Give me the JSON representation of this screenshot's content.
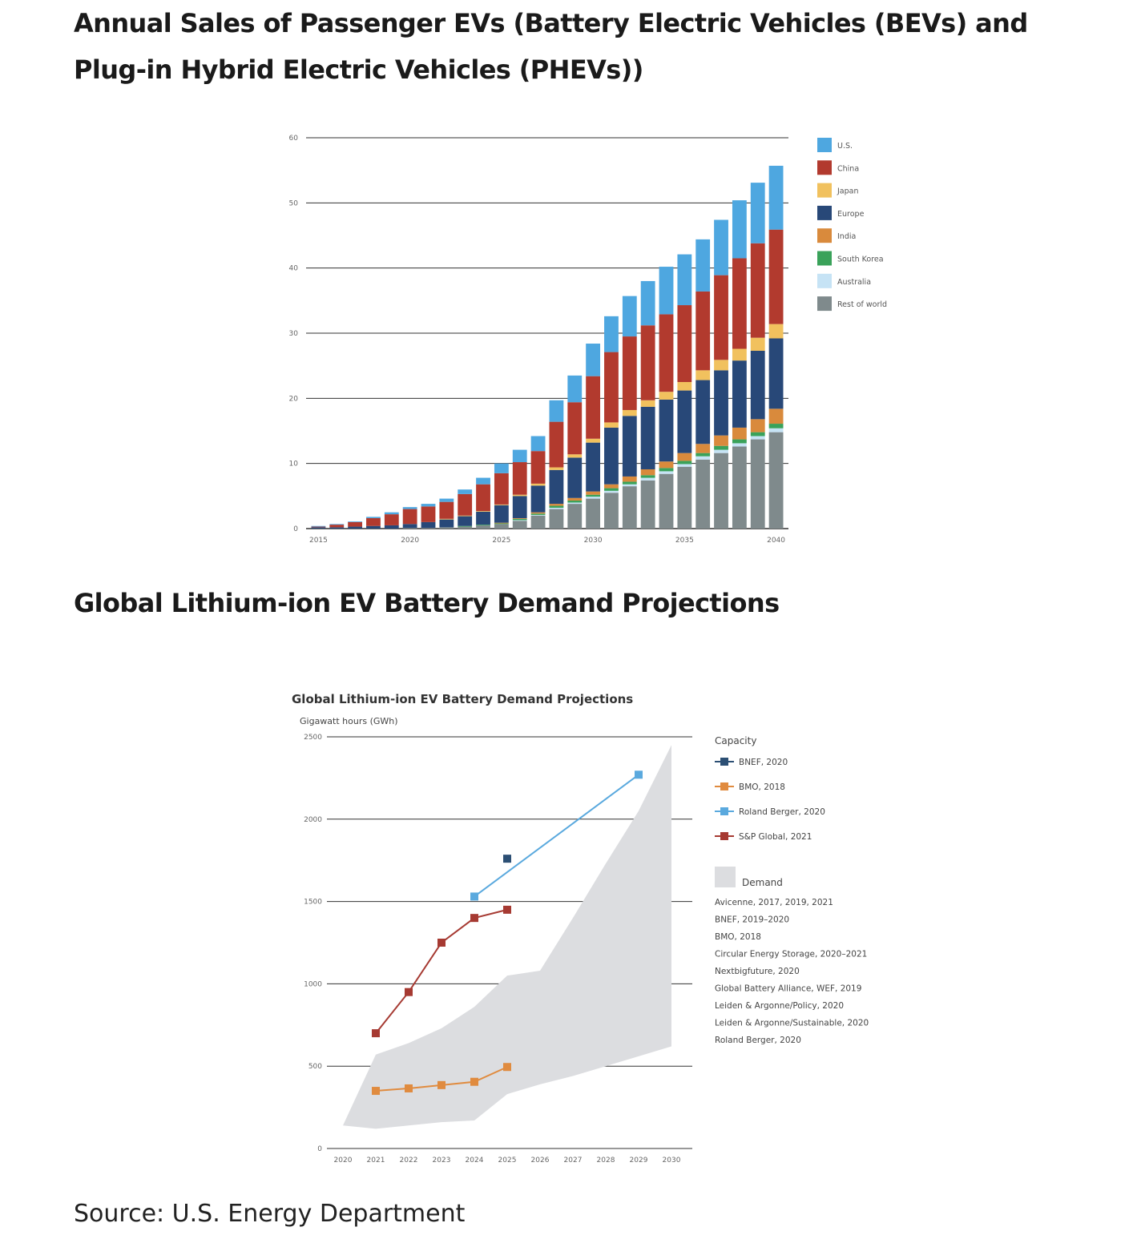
{
  "page": {
    "heading_1": "Annual Sales of Passenger EVs (Battery Electric Vehicles (BEVs) and Plug-in Hybrid Electric Vehicles (PHEVs))",
    "heading_2": "Global Lithium-ion EV Battery Demand Projections",
    "source": "Source: U.S. Energy Department"
  },
  "chart_data": [
    {
      "type": "bar",
      "stacked": true,
      "title": "",
      "xlabel": "",
      "ylabel": "",
      "ylim": [
        0,
        60
      ],
      "yticks": [
        0,
        10,
        20,
        30,
        40,
        50,
        60
      ],
      "xtick_labels": [
        "2015",
        "2020",
        "2025",
        "2030",
        "2035",
        "2040"
      ],
      "grid": true,
      "legend_position": "right",
      "categories": [
        "2015",
        "2016",
        "2017",
        "2018",
        "2019",
        "2020",
        "2021",
        "2022",
        "2023",
        "2024",
        "2025",
        "2026",
        "2027",
        "2028",
        "2029",
        "2030",
        "2031",
        "2032",
        "2033",
        "2034",
        "2035",
        "2036",
        "2037",
        "2038",
        "2039",
        "2040"
      ],
      "series": [
        {
          "name": "Rest of world",
          "color": "#7f8a8c",
          "values": [
            0,
            0,
            0,
            0,
            0,
            0.1,
            0.1,
            0.2,
            0.3,
            0.5,
            0.7,
            1.2,
            2.0,
            3.0,
            3.8,
            4.6,
            5.5,
            6.5,
            7.4,
            8.4,
            9.5,
            10.6,
            11.6,
            12.6,
            13.7,
            14.8
          ]
        },
        {
          "name": "Australia",
          "color": "#c6e3f5",
          "values": [
            0,
            0,
            0,
            0,
            0,
            0,
            0,
            0,
            0,
            0,
            0,
            0.1,
            0.1,
            0.2,
            0.2,
            0.3,
            0.3,
            0.3,
            0.4,
            0.4,
            0.4,
            0.5,
            0.5,
            0.5,
            0.5,
            0.6
          ]
        },
        {
          "name": "South Korea",
          "color": "#3aa25a",
          "values": [
            0,
            0,
            0,
            0,
            0,
            0,
            0,
            0,
            0.1,
            0.1,
            0.1,
            0.2,
            0.2,
            0.3,
            0.3,
            0.3,
            0.4,
            0.4,
            0.4,
            0.5,
            0.5,
            0.5,
            0.6,
            0.6,
            0.6,
            0.7
          ]
        },
        {
          "name": "India",
          "color": "#d98a3c",
          "values": [
            0,
            0,
            0,
            0,
            0,
            0,
            0,
            0,
            0,
            0,
            0.1,
            0.1,
            0.2,
            0.3,
            0.4,
            0.5,
            0.6,
            0.8,
            0.9,
            1.0,
            1.2,
            1.4,
            1.6,
            1.8,
            2.0,
            2.3
          ]
        },
        {
          "name": "Europe",
          "color": "#284878",
          "values": [
            0.2,
            0.2,
            0.3,
            0.4,
            0.5,
            0.6,
            0.9,
            1.2,
            1.5,
            2.0,
            2.7,
            3.4,
            4.1,
            5.2,
            6.2,
            7.5,
            8.7,
            9.3,
            9.6,
            9.5,
            9.6,
            9.8,
            10.0,
            10.3,
            10.5,
            10.8
          ]
        },
        {
          "name": "Japan",
          "color": "#f1c15e",
          "values": [
            0,
            0,
            0,
            0,
            0,
            0,
            0,
            0.1,
            0.1,
            0.1,
            0.1,
            0.2,
            0.3,
            0.4,
            0.5,
            0.6,
            0.8,
            0.9,
            1.0,
            1.2,
            1.3,
            1.5,
            1.6,
            1.8,
            2.0,
            2.2
          ]
        },
        {
          "name": "China",
          "color": "#b23a2e",
          "values": [
            0.1,
            0.4,
            0.7,
            1.2,
            1.7,
            2.3,
            2.4,
            2.6,
            3.3,
            4.1,
            4.8,
            5.0,
            5.0,
            7.0,
            8.0,
            9.6,
            10.8,
            11.3,
            11.5,
            11.9,
            11.8,
            12.1,
            13.0,
            13.9,
            14.5,
            14.5
          ]
        },
        {
          "name": "U.S.",
          "color": "#4ea7e0",
          "values": [
            0.1,
            0.1,
            0.1,
            0.2,
            0.3,
            0.3,
            0.4,
            0.5,
            0.7,
            1.0,
            1.5,
            1.9,
            2.3,
            3.3,
            4.1,
            5.0,
            5.5,
            6.2,
            6.8,
            7.3,
            7.8,
            8.0,
            8.5,
            8.9,
            9.3,
            9.8
          ]
        }
      ]
    },
    {
      "type": "line",
      "title": "Global Lithium-ion EV Battery Demand Projections",
      "xlabel": "",
      "ylabel": "Gigawatt hours (GWh)",
      "ylim": [
        0,
        2500
      ],
      "yticks": [
        0,
        500,
        1000,
        1500,
        2000,
        2500
      ],
      "x": [
        "2020",
        "2021",
        "2022",
        "2023",
        "2024",
        "2025",
        "2026",
        "2027",
        "2028",
        "2029",
        "2030"
      ],
      "grid": true,
      "legend_position": "right",
      "legend_title_capacity": "Capacity",
      "legend_title_demand": "Demand",
      "series": [
        {
          "name": "BNEF, 2020",
          "color": "#2c4f74",
          "points": [
            {
              "x": 2025,
              "y": 1760
            }
          ]
        },
        {
          "name": "BMO, 2018",
          "color": "#e08b3f",
          "points": [
            {
              "x": 2021,
              "y": 350
            },
            {
              "x": 2022,
              "y": 365
            },
            {
              "x": 2023,
              "y": 385
            },
            {
              "x": 2024,
              "y": 405
            },
            {
              "x": 2025,
              "y": 495
            }
          ]
        },
        {
          "name": "Roland Berger, 2020",
          "color": "#5aa9de",
          "points": [
            {
              "x": 2024,
              "y": 1530
            },
            {
              "x": 2029,
              "y": 2270
            }
          ]
        },
        {
          "name": "S&P Global, 2021",
          "color": "#a63a32",
          "points": [
            {
              "x": 2021,
              "y": 700
            },
            {
              "x": 2022,
              "y": 950
            },
            {
              "x": 2023,
              "y": 1250
            },
            {
              "x": 2024,
              "y": 1400
            },
            {
              "x": 2025,
              "y": 1450
            }
          ]
        }
      ],
      "demand_band": {
        "name": "Demand",
        "color": "#dcdde0",
        "x": [
          2020,
          2021,
          2022,
          2023,
          2024,
          2025,
          2026,
          2027,
          2028,
          2029,
          2030
        ],
        "upper": [
          140,
          570,
          640,
          730,
          860,
          1050,
          1080,
          1400,
          1730,
          2050,
          2450
        ],
        "lower": [
          140,
          120,
          140,
          160,
          170,
          330,
          390,
          440,
          500,
          560,
          620
        ]
      },
      "demand_sources": [
        "Avicenne, 2017, 2019, 2021",
        "BNEF, 2019–2020",
        "BMO, 2018",
        "Circular Energy Storage, 2020–2021",
        "Nextbigfuture, 2020",
        "Global Battery Alliance, WEF, 2019",
        "Leiden & Argonne/Policy, 2020",
        "Leiden & Argonne/Sustainable, 2020",
        "Roland Berger, 2020"
      ]
    }
  ]
}
